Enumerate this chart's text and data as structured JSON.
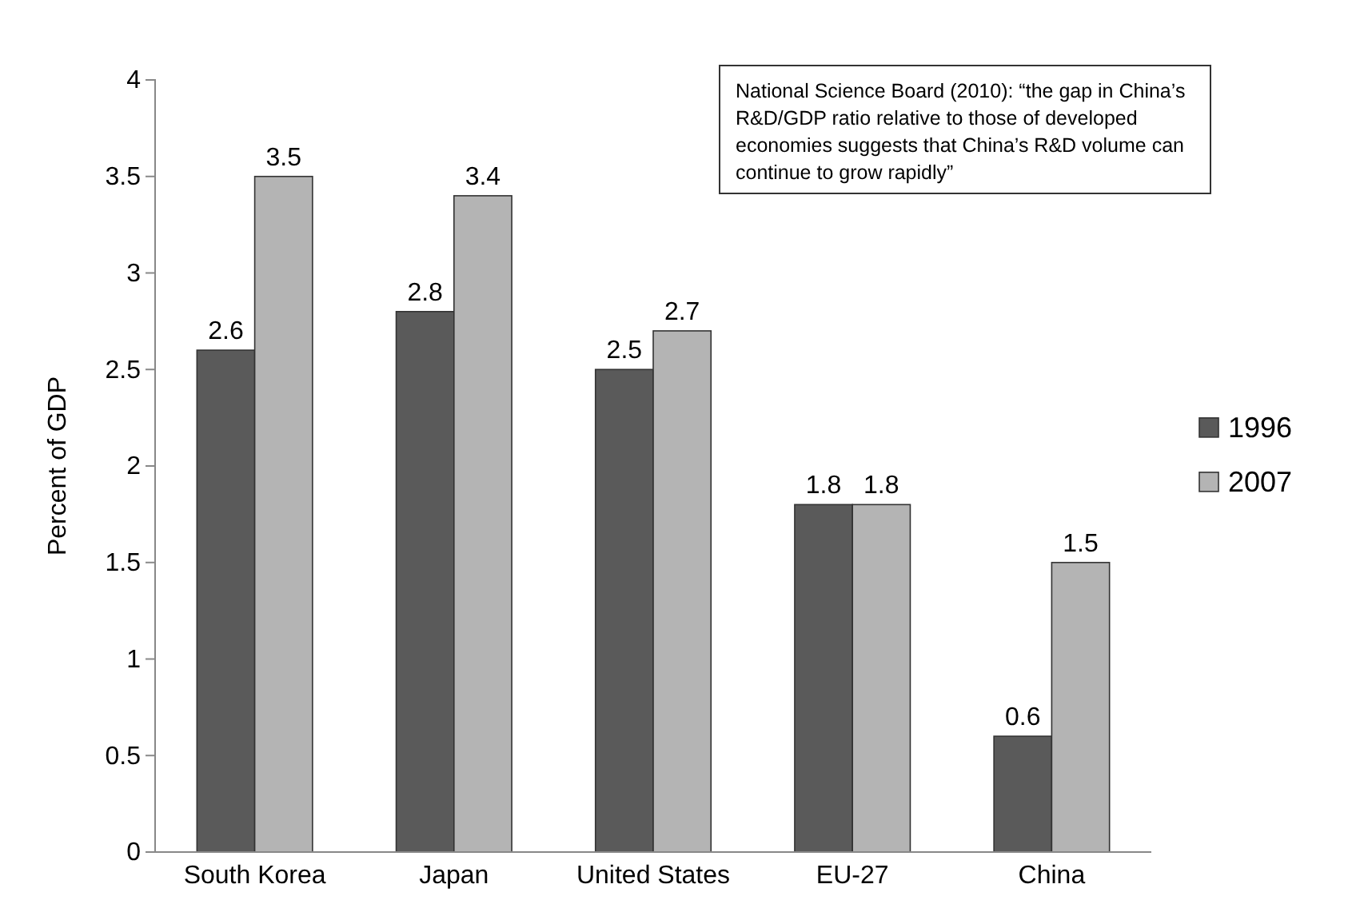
{
  "chart_data": {
    "type": "bar",
    "ylabel": "Percent of GDP",
    "categories": [
      "South Korea",
      "Japan",
      "United States",
      "EU-27",
      "China"
    ],
    "series": [
      {
        "name": "1996",
        "color": "#5a5a5a",
        "values": [
          2.6,
          2.8,
          2.5,
          1.8,
          0.6
        ]
      },
      {
        "name": "2007",
        "color": "#b4b4b4",
        "values": [
          3.5,
          3.4,
          2.7,
          1.8,
          1.5
        ]
      }
    ],
    "ylim": [
      0,
      4
    ],
    "yticks": [
      0,
      0.5,
      1,
      1.5,
      2,
      2.5,
      3,
      3.5,
      4
    ],
    "data_labels": true,
    "legend": "right",
    "grid": false,
    "annotations": [
      "National Science Board (2010): “the gap in China’s R&D/GDP ratio relative to those of developed economies suggests that China’s R&D volume can continue to grow rapidly”"
    ]
  }
}
